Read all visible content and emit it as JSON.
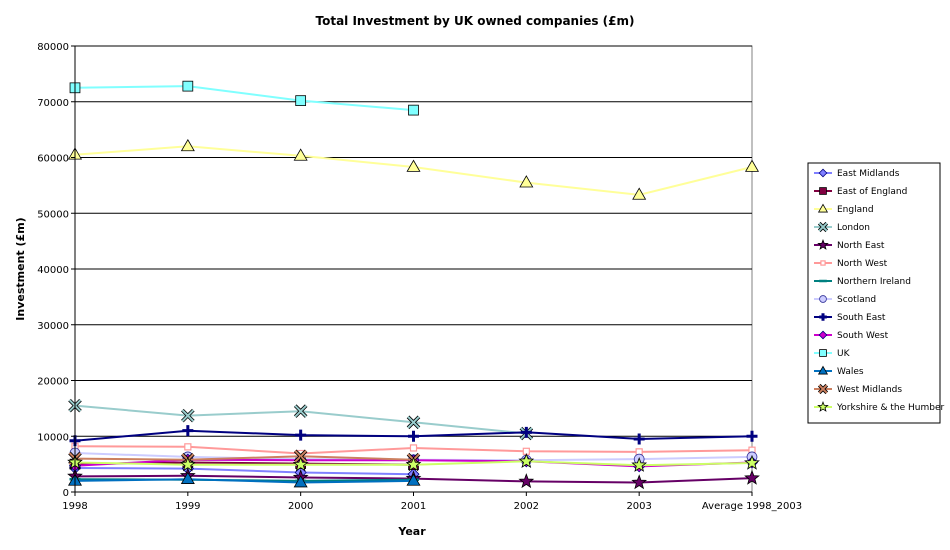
{
  "chart_data": {
    "type": "line",
    "title": "Total Investment by UK owned companies (£m)",
    "xlabel": "Year",
    "ylabel": "Investment (£m)",
    "categories": [
      "1998",
      "1999",
      "2000",
      "2001",
      "2002",
      "2003",
      "Average 1998_2003"
    ],
    "ylim": [
      0,
      80000
    ],
    "yticks": [
      0,
      10000,
      20000,
      30000,
      40000,
      50000,
      60000,
      70000,
      80000
    ],
    "grid": "horizontal",
    "legend_position": "right",
    "series": [
      {
        "name": "East Midlands",
        "color": "#8080ff",
        "marker": "diamond",
        "values": [
          4300,
          4200,
          3500,
          3200,
          null,
          null,
          null
        ]
      },
      {
        "name": "East of England",
        "color": "#800040",
        "marker": "square",
        "values": [
          5000,
          5300,
          5100,
          4900,
          null,
          null,
          null
        ]
      },
      {
        "name": "England",
        "color": "#ffff99",
        "marker": "triangle",
        "values": [
          60500,
          62000,
          60300,
          58300,
          55500,
          53300,
          58300
        ]
      },
      {
        "name": "London",
        "color": "#99cccc",
        "marker": "x",
        "values": [
          15500,
          13700,
          14500,
          12500,
          10500,
          null,
          null
        ]
      },
      {
        "name": "North East",
        "color": "#660066",
        "marker": "star",
        "values": [
          2800,
          2900,
          2600,
          2400,
          1900,
          1700,
          2500
        ]
      },
      {
        "name": "North West",
        "color": "#ff9999",
        "marker": "smallsquare",
        "values": [
          8200,
          8100,
          6900,
          7900,
          7300,
          7200,
          7500
        ]
      },
      {
        "name": "Northern Ireland",
        "color": "#008080",
        "marker": "dash",
        "values": [
          2300,
          2200,
          2000,
          2200,
          null,
          null,
          null
        ]
      },
      {
        "name": "Scotland",
        "color": "#ccccff",
        "marker": "circle",
        "values": [
          7000,
          6300,
          5900,
          5800,
          5700,
          5900,
          6300
        ]
      },
      {
        "name": "South East",
        "color": "#000080",
        "marker": "plus",
        "values": [
          9200,
          11000,
          10200,
          10000,
          10700,
          9500,
          10000
        ]
      },
      {
        "name": "South West",
        "color": "#cc00cc",
        "marker": "diamond",
        "values": [
          4700,
          5800,
          5700,
          5700,
          5500,
          4600,
          5300
        ]
      },
      {
        "name": "UK",
        "color": "#80ffff",
        "marker": "square",
        "values": [
          72500,
          72800,
          70200,
          68500,
          null,
          null,
          null
        ]
      },
      {
        "name": "Wales",
        "color": "#0070c0",
        "marker": "triangle",
        "values": [
          2000,
          2300,
          1700,
          2000,
          null,
          null,
          null
        ]
      },
      {
        "name": "West Midlands",
        "color": "#cc8060",
        "marker": "x",
        "values": [
          6000,
          5800,
          6400,
          5800,
          null,
          null,
          null
        ]
      },
      {
        "name": "Yorkshire & the Humber",
        "color": "#ccff66",
        "marker": "star",
        "values": [
          5300,
          4900,
          4900,
          4900,
          5500,
          4800,
          5200
        ]
      }
    ]
  }
}
